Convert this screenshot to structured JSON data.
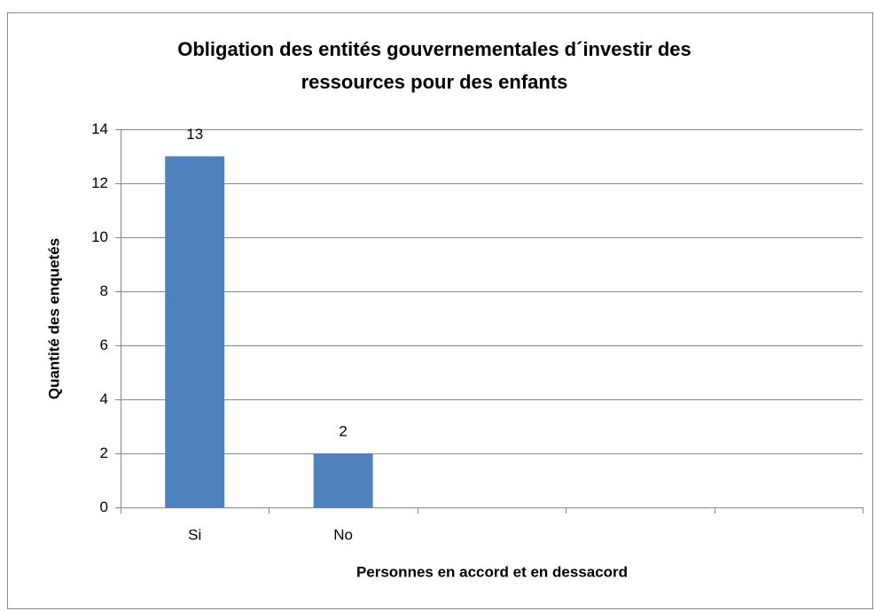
{
  "chart_data": {
    "type": "bar",
    "title": [
      "Obligation des entités gouvernementales d´investir des",
      "ressources pour des enfants"
    ],
    "x_label": "Personnes en accord et en dessacord",
    "y_label": "Quantité  des enquetés",
    "categories": [
      "Si",
      "No",
      null,
      null,
      null
    ],
    "values": [
      13,
      2,
      null,
      null,
      null
    ],
    "color": "#4f81bd",
    "ylim": [
      0,
      14
    ],
    "yticks": [
      0,
      2,
      4,
      6,
      8,
      10,
      12,
      14
    ],
    "grid": true,
    "data_labels": true
  }
}
